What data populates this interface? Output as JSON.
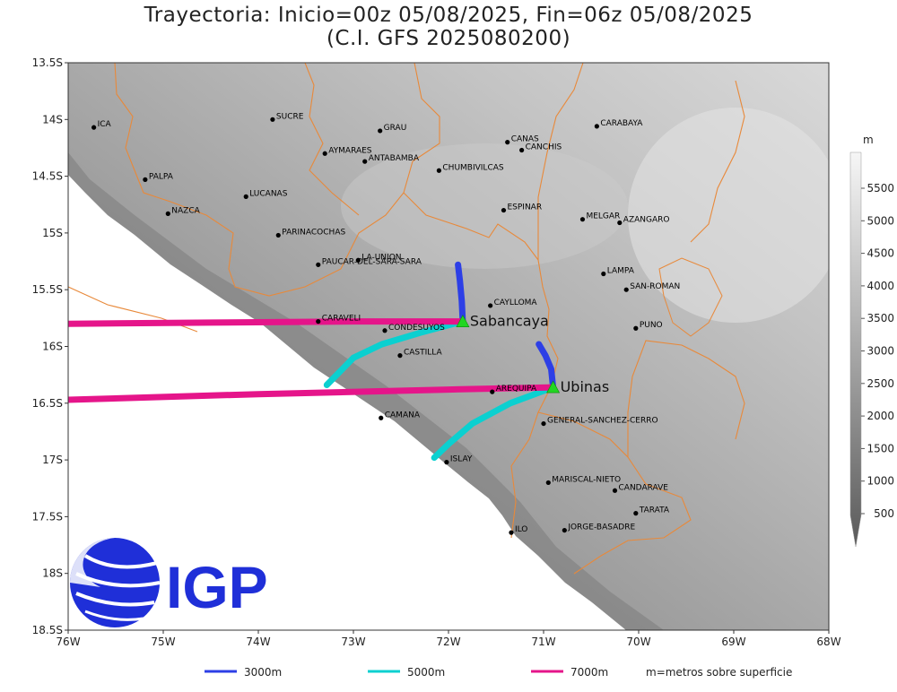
{
  "title_line1": "Trayectoria: Inicio=00z 05/08/2025, Fin=06z 05/08/2025",
  "title_line2": "(C.I. GFS 2025080200)",
  "axes": {
    "lon_ticks": [
      "76W",
      "75W",
      "74W",
      "73W",
      "72W",
      "71W",
      "70W",
      "69W",
      "68W"
    ],
    "lat_ticks": [
      "13.5S",
      "14S",
      "14.5S",
      "15S",
      "15.5S",
      "16S",
      "16.5S",
      "17S",
      "17.5S",
      "18S",
      "18.5S"
    ],
    "lon_range": [
      -76,
      -68
    ],
    "lat_range": [
      -18.5,
      -13.5
    ]
  },
  "places": [
    {
      "name": "ICA",
      "lon": -75.73,
      "lat": -14.07
    },
    {
      "name": "SUCRE",
      "lon": -73.85,
      "lat": -14.0
    },
    {
      "name": "GRAU",
      "lon": -72.72,
      "lat": -14.1
    },
    {
      "name": "AYMARAES",
      "lon": -73.3,
      "lat": -14.3
    },
    {
      "name": "ANTABAMBA",
      "lon": -72.88,
      "lat": -14.37
    },
    {
      "name": "CHUMBIVILCAS",
      "lon": -72.1,
      "lat": -14.45
    },
    {
      "name": "CANAS",
      "lon": -71.38,
      "lat": -14.2
    },
    {
      "name": "CANCHIS",
      "lon": -71.23,
      "lat": -14.27
    },
    {
      "name": "CARABAYA",
      "lon": -70.44,
      "lat": -14.06
    },
    {
      "name": "PALPA",
      "lon": -75.19,
      "lat": -14.53
    },
    {
      "name": "LUCANAS",
      "lon": -74.13,
      "lat": -14.68
    },
    {
      "name": "NAZCA",
      "lon": -74.95,
      "lat": -14.83
    },
    {
      "name": "ESPINAR",
      "lon": -71.42,
      "lat": -14.8
    },
    {
      "name": "MELGAR",
      "lon": -70.59,
      "lat": -14.88
    },
    {
      "name": "AZANGARO",
      "lon": -70.2,
      "lat": -14.91
    },
    {
      "name": "PARINACOCHAS",
      "lon": -73.79,
      "lat": -15.02
    },
    {
      "name": "LA-UNION",
      "lon": -72.95,
      "lat": -15.24
    },
    {
      "name": "PAUCAR-DEL-SARA-SARA",
      "lon": -73.37,
      "lat": -15.28
    },
    {
      "name": "LAMPA",
      "lon": -70.37,
      "lat": -15.36
    },
    {
      "name": "SAN-ROMAN",
      "lon": -70.13,
      "lat": -15.5
    },
    {
      "name": "CAYLLOMA",
      "lon": -71.56,
      "lat": -15.64
    },
    {
      "name": "CARAVELI",
      "lon": -73.37,
      "lat": -15.78
    },
    {
      "name": "CONDESUYOS",
      "lon": -72.67,
      "lat": -15.86
    },
    {
      "name": "PUNO",
      "lon": -70.03,
      "lat": -15.84
    },
    {
      "name": "CASTILLA",
      "lon": -72.51,
      "lat": -16.08
    },
    {
      "name": "AREQUIPA",
      "lon": -71.54,
      "lat": -16.4
    },
    {
      "name": "GENERAL-SANCHEZ-CERRO",
      "lon": -71.0,
      "lat": -16.68
    },
    {
      "name": "CAMANA",
      "lon": -72.71,
      "lat": -16.63
    },
    {
      "name": "ISLAY",
      "lon": -72.02,
      "lat": -17.02
    },
    {
      "name": "MARISCAL-NIETO",
      "lon": -70.95,
      "lat": -17.2
    },
    {
      "name": "CANDARAVE",
      "lon": -70.25,
      "lat": -17.27
    },
    {
      "name": "TARATA",
      "lon": -70.03,
      "lat": -17.47
    },
    {
      "name": "ILO",
      "lon": -71.34,
      "lat": -17.64
    },
    {
      "name": "JORGE-BASADRE",
      "lon": -70.78,
      "lat": -17.62
    }
  ],
  "volcanoes": [
    {
      "name": "Sabancaya",
      "lon": -71.85,
      "lat": -15.78
    },
    {
      "name": "Ubinas",
      "lon": -70.9,
      "lat": -16.36
    }
  ],
  "trajectories": [
    {
      "volcano": "Sabancaya",
      "level": "3000m",
      "color": "#2d3fe6",
      "path": [
        [
          -71.85,
          -15.78
        ],
        [
          -71.86,
          -15.6
        ],
        [
          -71.88,
          -15.42
        ],
        [
          -71.9,
          -15.28
        ]
      ]
    },
    {
      "volcano": "Sabancaya",
      "level": "5000m",
      "color": "#0bd0d0",
      "path": [
        [
          -71.85,
          -15.78
        ],
        [
          -72.3,
          -15.88
        ],
        [
          -72.7,
          -15.98
        ],
        [
          -73.0,
          -16.1
        ],
        [
          -73.28,
          -16.34
        ]
      ]
    },
    {
      "volcano": "Sabancaya",
      "level": "7000m",
      "color": "#e5158a",
      "path": [
        [
          -71.85,
          -15.78
        ],
        [
          -73.0,
          -15.78
        ],
        [
          -74.5,
          -15.79
        ],
        [
          -76.0,
          -15.8
        ]
      ]
    },
    {
      "volcano": "Ubinas",
      "level": "3000m",
      "color": "#2d3fe6",
      "path": [
        [
          -70.9,
          -16.36
        ],
        [
          -70.92,
          -16.2
        ],
        [
          -70.98,
          -16.08
        ],
        [
          -71.05,
          -15.98
        ]
      ]
    },
    {
      "volcano": "Ubinas",
      "level": "5000m",
      "color": "#0bd0d0",
      "path": [
        [
          -70.9,
          -16.36
        ],
        [
          -71.35,
          -16.5
        ],
        [
          -71.75,
          -16.68
        ],
        [
          -72.0,
          -16.86
        ],
        [
          -72.15,
          -16.98
        ]
      ]
    },
    {
      "volcano": "Ubinas",
      "level": "7000m",
      "color": "#e5158a",
      "path": [
        [
          -70.9,
          -16.36
        ],
        [
          -72.0,
          -16.38
        ],
        [
          -74.0,
          -16.42
        ],
        [
          -76.0,
          -16.47
        ]
      ]
    }
  ],
  "colorbar": {
    "unit": "m",
    "labels": [
      "5500",
      "5000",
      "4500",
      "4000",
      "3500",
      "3000",
      "2500",
      "2000",
      "1500",
      "1000",
      "500"
    ]
  },
  "legend": {
    "items": [
      {
        "label": "3000m",
        "color": "#2d3fe6"
      },
      {
        "label": "5000m",
        "color": "#0bd0d0"
      },
      {
        "label": "7000m",
        "color": "#e5158a"
      }
    ],
    "note": "m=metros sobre superficie"
  },
  "logo": {
    "text": "IGP"
  }
}
